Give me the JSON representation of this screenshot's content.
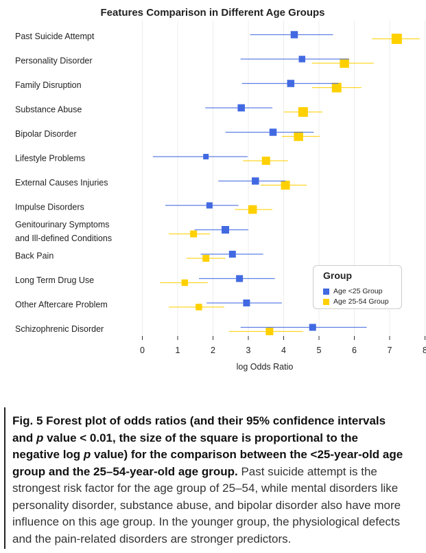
{
  "chart_data": {
    "type": "forest",
    "title": "Features Comparison in Different Age Groups",
    "xlabel": "log Odds Ratio",
    "xlim": [
      0,
      8
    ],
    "xticks": [
      "0",
      "1",
      "2",
      "3",
      "4",
      "5",
      "6",
      "7",
      "8"
    ],
    "legend": {
      "title": "Group",
      "placement": "right",
      "entries": [
        {
          "name": "Age <25 Group",
          "color": "#4169e1"
        },
        {
          "name": "Age 25-54 Group",
          "color": "#ffd000"
        }
      ]
    },
    "categories": [
      [
        "Past Suicide Attempt"
      ],
      [
        "Personality Disorder"
      ],
      [
        "Family Disruption"
      ],
      [
        "Substance Abuse"
      ],
      [
        "Bipolar Disorder"
      ],
      [
        "Lifestyle Problems"
      ],
      [
        "External Causes Injuries"
      ],
      [
        "Impulse Disorders"
      ],
      [
        "Genitourinary Symptoms",
        "and Ill-defined Conditions"
      ],
      [
        "Back Pain"
      ],
      [
        "Long Term Drug Use"
      ],
      [
        "Other Aftercare Problem"
      ],
      [
        "Schizophrenic Disorder"
      ]
    ],
    "series": [
      {
        "name": "Age <25 Group",
        "color": "#4169e1",
        "points": [
          {
            "est": 4.3,
            "lo": 3.05,
            "hi": 5.4,
            "size": 0.55
          },
          {
            "est": 4.52,
            "lo": 2.78,
            "hi": 5.85,
            "size": 0.45
          },
          {
            "est": 4.2,
            "lo": 2.82,
            "hi": 5.55,
            "size": 0.55
          },
          {
            "est": 2.8,
            "lo": 1.78,
            "hi": 3.68,
            "size": 0.55
          },
          {
            "est": 3.7,
            "lo": 2.35,
            "hi": 4.85,
            "size": 0.55
          },
          {
            "est": 1.8,
            "lo": 0.3,
            "hi": 2.98,
            "size": 0.3
          },
          {
            "est": 3.2,
            "lo": 2.15,
            "hi": 4.05,
            "size": 0.55
          },
          {
            "est": 1.9,
            "lo": 0.65,
            "hi": 2.72,
            "size": 0.4
          },
          {
            "est": 2.35,
            "lo": 1.48,
            "hi": 3.0,
            "size": 0.6
          },
          {
            "est": 2.55,
            "lo": 1.65,
            "hi": 3.42,
            "size": 0.5
          },
          {
            "est": 2.75,
            "lo": 1.6,
            "hi": 3.75,
            "size": 0.5
          },
          {
            "est": 2.95,
            "lo": 1.82,
            "hi": 3.95,
            "size": 0.5
          },
          {
            "est": 4.82,
            "lo": 2.78,
            "hi": 6.35,
            "size": 0.5
          }
        ]
      },
      {
        "name": "Age 25-54 Group",
        "color": "#ffd000",
        "points": [
          {
            "est": 7.2,
            "lo": 6.5,
            "hi": 7.85,
            "size": 1.0
          },
          {
            "est": 5.72,
            "lo": 4.8,
            "hi": 6.55,
            "size": 0.85
          },
          {
            "est": 5.5,
            "lo": 4.8,
            "hi": 6.2,
            "size": 0.9
          },
          {
            "est": 4.55,
            "lo": 4.0,
            "hi": 5.1,
            "size": 0.9
          },
          {
            "est": 4.42,
            "lo": 3.95,
            "hi": 5.02,
            "size": 0.85
          },
          {
            "est": 3.5,
            "lo": 2.85,
            "hi": 4.12,
            "size": 0.7
          },
          {
            "est": 4.05,
            "lo": 3.35,
            "hi": 4.65,
            "size": 0.8
          },
          {
            "est": 3.12,
            "lo": 2.62,
            "hi": 3.68,
            "size": 0.75
          },
          {
            "est": 1.45,
            "lo": 0.75,
            "hi": 1.92,
            "size": 0.5
          },
          {
            "est": 1.8,
            "lo": 1.25,
            "hi": 2.35,
            "size": 0.5
          },
          {
            "est": 1.2,
            "lo": 0.5,
            "hi": 1.85,
            "size": 0.45
          },
          {
            "est": 1.6,
            "lo": 0.75,
            "hi": 2.32,
            "size": 0.45
          },
          {
            "est": 3.6,
            "lo": 2.45,
            "hi": 4.55,
            "size": 0.6
          }
        ]
      }
    ],
    "grid": "vertical-major"
  },
  "caption": {
    "bold": "Fig. 5 Forest plot of odds ratios (and their 95% confidence intervals and ",
    "p1": "p",
    "bold2": " value < 0.01, the size of the square is proportional to the negative log ",
    "p2": "p",
    "bold3": " value) for the comparison between the <25-year-old age group and the 25–54-year-old age group.",
    "normal": " Past suicide attempt is the strongest risk factor for the age group of 25–54, while mental disorders like personality disorder, substance abuse, and bipolar disorder also have more influence on this age group. In the younger group, the physiological defects and the pain-related disorders are stronger predictors."
  }
}
